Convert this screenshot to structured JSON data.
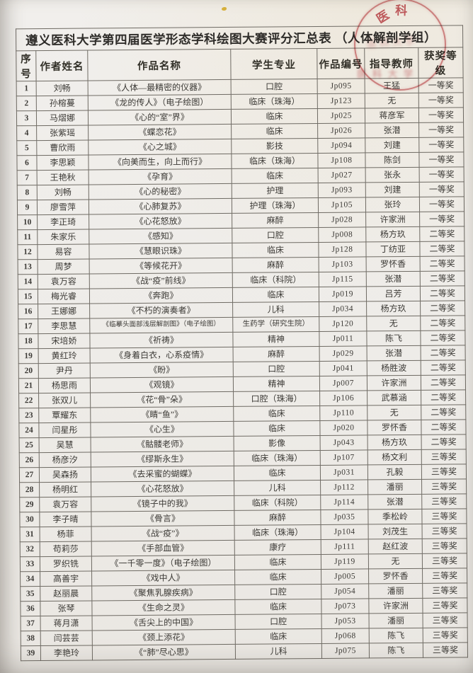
{
  "page": {
    "title": "遵义医科大学第四届医学形态学科绘图大赛评分汇总表 （人体解剖学组）"
  },
  "table": {
    "headers": [
      "序号",
      "作者姓名",
      "作品名称",
      "学生专业",
      "作品编号",
      "指导教师",
      "获奖等级"
    ],
    "rows": [
      [
        "1",
        "刘畅",
        "《人体—最精密的仪器》",
        "口腔",
        "Jp095",
        "王猛",
        "一等奖"
      ],
      [
        "2",
        "孙榕蔓",
        "《龙的传人》（电子绘图）",
        "临床（珠海）",
        "Jp123",
        "无",
        "一等奖"
      ],
      [
        "3",
        "马熠娜",
        "《心的“室”界》",
        "临床",
        "Jp025",
        "蒋彦军",
        "一等奖"
      ],
      [
        "4",
        "张紫瑶",
        "《蝶恋花》",
        "临床",
        "Jp026",
        "张潜",
        "一等奖"
      ],
      [
        "5",
        "曹欣雨",
        "《心之城》",
        "影技",
        "Jp094",
        "刘建",
        "一等奖"
      ],
      [
        "6",
        "李思颖",
        "《向美而生，向上而行》",
        "临床（珠海）",
        "Jp108",
        "陈剑",
        "一等奖"
      ],
      [
        "7",
        "王艳秋",
        "《孕育》",
        "临床",
        "Jp027",
        "张永",
        "一等奖"
      ],
      [
        "8",
        "刘畅",
        "《心的秘密》",
        "护理",
        "Jp093",
        "刘建",
        "一等奖"
      ],
      [
        "9",
        "廖雪萍",
        "《心肺复苏》",
        "护理（珠海）",
        "Jp105",
        "张玲",
        "一等奖"
      ],
      [
        "10",
        "李正琦",
        "《心花怒放》",
        "麻醉",
        "Jp028",
        "许家洲",
        "一等奖"
      ],
      [
        "11",
        "朱家乐",
        "《感知》",
        "口腔",
        "Jp008",
        "杨方玖",
        "二等奖"
      ],
      [
        "12",
        "易容",
        "《慧眼识珠》",
        "临床",
        "Jp128",
        "丁纺亚",
        "二等奖"
      ],
      [
        "13",
        "周梦",
        "《等候花开》",
        "麻醉",
        "Jp103",
        "罗怀香",
        "二等奖"
      ],
      [
        "14",
        "袁万容",
        "《战“疫”前线》",
        "临床（科院）",
        "Jp115",
        "张潜",
        "二等奖"
      ],
      [
        "15",
        "梅光睿",
        "《奔跑》",
        "临床",
        "Jp019",
        "吕芳",
        "二等奖"
      ],
      [
        "16",
        "王娜娜",
        "《不朽的演奏者》",
        "儿科",
        "Jp034",
        "杨方玖",
        "二等奖"
      ],
      [
        "17",
        "李思慧",
        "《临摹头面部浅层解剖图》（电子绘图）",
        "生药学（研究生院）",
        "Jp120",
        "无",
        "二等奖"
      ],
      [
        "18",
        "宋培娇",
        "《祈祷》",
        "精神",
        "Jp011",
        "陈飞",
        "二等奖"
      ],
      [
        "19",
        "黄红玲",
        "《身着白衣，心系疫情》",
        "麻醉",
        "Jp029",
        "张潜",
        "二等奖"
      ],
      [
        "20",
        "尹丹",
        "《盼》",
        "口腔",
        "Jp041",
        "杨胜波",
        "二等奖"
      ],
      [
        "21",
        "杨思雨",
        "《观镜》",
        "精神",
        "Jp007",
        "许家洲",
        "二等奖"
      ],
      [
        "22",
        "张双儿",
        "《花“骨”朵》",
        "口腔（珠海）",
        "Jp106",
        "武慕涵",
        "二等奖"
      ],
      [
        "23",
        "覃耀东",
        "《睛“鱼”》",
        "临床",
        "Jp110",
        "无",
        "二等奖"
      ],
      [
        "24",
        "闫星彤",
        "《心生》",
        "临床",
        "Jp020",
        "罗怀香",
        "二等奖"
      ],
      [
        "25",
        "吴慧",
        "《骷髅老师》",
        "影像",
        "Jp043",
        "杨方玖",
        "二等奖"
      ],
      [
        "26",
        "杨彦汐",
        "《缪斯永生》",
        "临床（珠海）",
        "Jp107",
        "杨文利",
        "三等奖"
      ],
      [
        "27",
        "吴森扬",
        "《去采蜜的蝴蝶》",
        "临床",
        "Jp031",
        "孔毅",
        "三等奖"
      ],
      [
        "28",
        "杨明红",
        "《心花怒放》",
        "儿科",
        "Jp112",
        "潘丽",
        "三等奖"
      ],
      [
        "29",
        "袁万容",
        "《镜子中的我》",
        "临床（科院）",
        "Jp114",
        "张潜",
        "三等奖"
      ],
      [
        "30",
        "李子晴",
        "《骨言》",
        "麻醉",
        "Jp035",
        "季松岭",
        "三等奖"
      ],
      [
        "31",
        "杨菲",
        "《战“疫”》",
        "临床（珠海）",
        "Jp104",
        "刘茂生",
        "三等奖"
      ],
      [
        "32",
        "苟莉莎",
        "《手部血管》",
        "康疗",
        "Jp111",
        "赵红波",
        "三等奖"
      ],
      [
        "33",
        "罗织铣",
        "《一千零一度》（电子绘图）",
        "临床",
        "Jp119",
        "无",
        "三等奖"
      ],
      [
        "34",
        "高善宇",
        "《戏中人》",
        "临床",
        "Jp005",
        "罗怀香",
        "三等奖"
      ],
      [
        "35",
        "赵丽晨",
        "《聚焦乳腺疾病》",
        "口腔",
        "Jp054",
        "潘丽",
        "三等奖"
      ],
      [
        "36",
        "张琴",
        "《生命之灵》",
        "临床",
        "Jp073",
        "许家洲",
        "三等奖"
      ],
      [
        "37",
        "蒋月潇",
        "《舌尖上的中国》",
        "口腔",
        "Jp053",
        "潘丽",
        "三等奖"
      ],
      [
        "38",
        "闫芸芸",
        "《颈上添花》",
        "临床",
        "Jp068",
        "陈飞",
        "三等奖"
      ],
      [
        "39",
        "李艳玲",
        "《“肺”尽心思》",
        "儿科",
        "Jp075",
        "陈飞",
        "三等奖"
      ]
    ]
  },
  "stamp": {
    "arc_chars": [
      "医",
      "科"
    ],
    "smudge_text": "医科大学",
    "color": "#c4444a"
  }
}
